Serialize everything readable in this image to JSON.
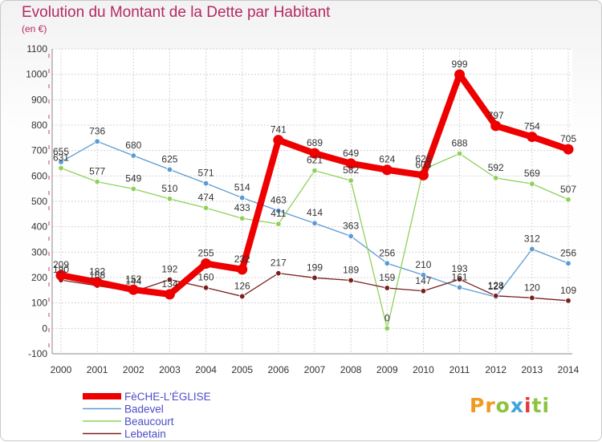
{
  "chart_data": {
    "type": "line",
    "title": "Evolution du Montant de la Dette par Habitant",
    "unit_label": "(en €)",
    "x": [
      "2000",
      "2001",
      "2002",
      "2003",
      "2004",
      "2005",
      "2006",
      "2007",
      "2008",
      "2009",
      "2010",
      "2011",
      "2012",
      "2013",
      "2014"
    ],
    "ylim": [
      -100,
      1100
    ],
    "yticks": [
      -100,
      0,
      100,
      200,
      300,
      400,
      500,
      600,
      700,
      800,
      900,
      1000,
      1100
    ],
    "grid": true,
    "legend_position": "bottom-left",
    "series": [
      {
        "name": "FèCHE-L'ÉGLISE",
        "color": "#ee0000",
        "emphasis": true,
        "values": [
          209,
          182,
          152,
          134,
          255,
          232,
          741,
          689,
          649,
          624,
          603,
          999,
          797,
          754,
          705
        ],
        "labels": [
          "209",
          "182",
          "152",
          "134",
          "255",
          "232",
          "741",
          "689",
          "649",
          "624",
          "603",
          "999",
          "797",
          "754",
          "705"
        ]
      },
      {
        "name": "Badevel",
        "color": "#5a9bd4",
        "values": [
          655,
          736,
          680,
          625,
          571,
          514,
          463,
          414,
          363,
          256,
          210,
          161,
          124,
          312,
          256
        ],
        "labels": [
          "655",
          "736",
          "680",
          "625",
          "571",
          "514",
          "463",
          "414",
          "363",
          "256",
          "210",
          "161",
          "124",
          "312",
          "256"
        ]
      },
      {
        "name": "Beaucourt",
        "color": "#8fd15c",
        "values": [
          631,
          577,
          549,
          510,
          474,
          433,
          411,
          621,
          582,
          0,
          626,
          688,
          592,
          569,
          507
        ],
        "labels": [
          "631",
          "577",
          "549",
          "510",
          "474",
          "433",
          "411",
          "621",
          "582",
          "0",
          "626",
          "688",
          "592",
          "569",
          "507"
        ]
      },
      {
        "name": "Lebetain",
        "color": "#7a1f1f",
        "values": [
          190,
          168,
          144,
          192,
          160,
          126,
          217,
          199,
          189,
          159,
          147,
          193,
          128,
          120,
          109
        ],
        "labels": [
          "190",
          "168",
          "144",
          "192",
          "160",
          "126",
          "217",
          "199",
          "189",
          "159",
          "147",
          "193",
          "128",
          "120",
          "109"
        ]
      }
    ]
  },
  "branding": {
    "logo_parts": [
      "Pr",
      "o",
      "x",
      "i",
      "ti"
    ]
  }
}
